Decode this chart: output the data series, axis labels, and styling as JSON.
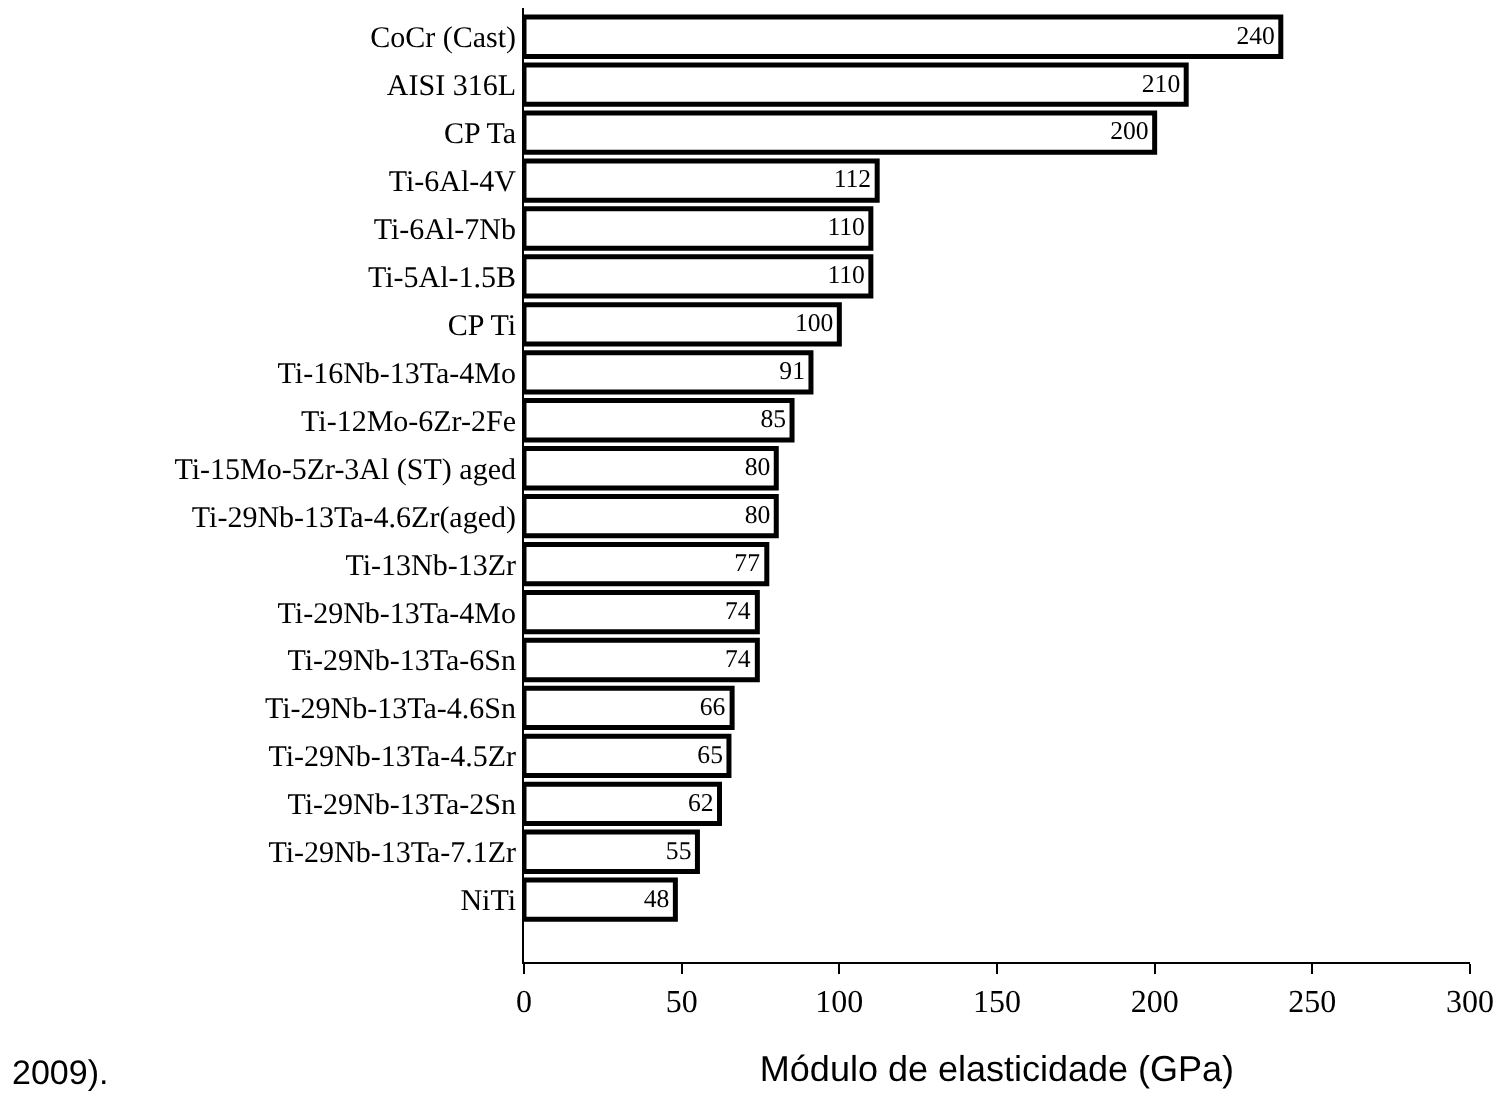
{
  "chart_data": {
    "type": "bar",
    "orientation": "horizontal",
    "xlabel": "Módulo de elasticidade (GPa)",
    "categories": [
      "CoCr (Cast)",
      "AISI 316L",
      "CP Ta",
      "Ti-6Al-4V",
      "Ti-6Al-7Nb",
      "Ti-5Al-1.5B",
      "CP Ti",
      "Ti-16Nb-13Ta-4Mo",
      "Ti-12Mo-6Zr-2Fe",
      "Ti-15Mo-5Zr-3Al (ST) aged",
      "Ti-29Nb-13Ta-4.6Zr(aged)",
      "Ti-13Nb-13Zr",
      "Ti-29Nb-13Ta-4Mo",
      "Ti-29Nb-13Ta-6Sn",
      "Ti-29Nb-13Ta-4.6Sn",
      "Ti-29Nb-13Ta-4.5Zr",
      "Ti-29Nb-13Ta-2Sn",
      "Ti-29Nb-13Ta-7.1Zr",
      "NiTi"
    ],
    "values": [
      240,
      210,
      200,
      112,
      110,
      110,
      100,
      91,
      85,
      80,
      80,
      77,
      74,
      74,
      66,
      65,
      62,
      55,
      48
    ],
    "color": "#ffffff",
    "data_labels": true,
    "xlim": [
      0,
      300
    ],
    "xticks": [
      0,
      50,
      100,
      150,
      200,
      250,
      300
    ],
    "annotations": [
      "2009)."
    ]
  }
}
